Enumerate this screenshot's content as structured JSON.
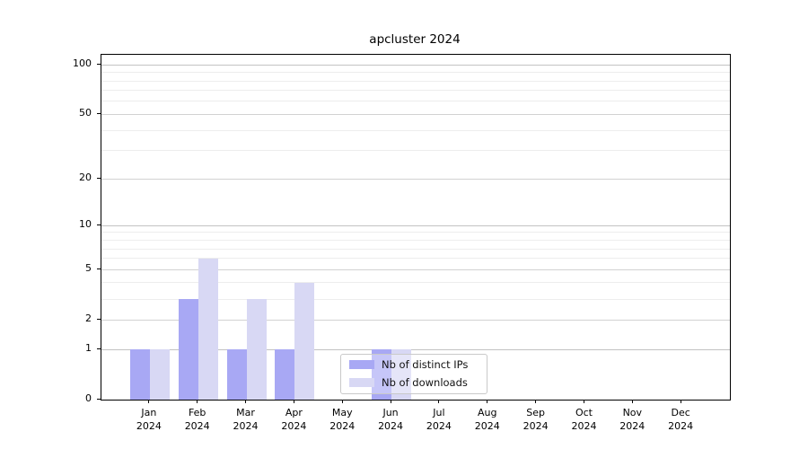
{
  "title": "apcluster 2024",
  "chart_data": {
    "type": "bar",
    "title": "apcluster 2024",
    "categories": [
      "Jan 2024",
      "Feb 2024",
      "Mar 2024",
      "Apr 2024",
      "May 2024",
      "Jun 2024",
      "Jul 2024",
      "Aug 2024",
      "Sep 2024",
      "Oct 2024",
      "Nov 2024",
      "Dec 2024"
    ],
    "series": [
      {
        "name": "Nb of distinct IPs",
        "color": "#a8a8f4",
        "values": [
          1,
          3,
          1,
          1,
          0,
          1,
          0,
          0,
          0,
          0,
          0,
          0
        ]
      },
      {
        "name": "Nb of downloads",
        "color": "#d8d8f4",
        "values": [
          1,
          6,
          3,
          4,
          0,
          1,
          0,
          0,
          0,
          0,
          0,
          0
        ]
      }
    ],
    "yscale": "log10(1+y)",
    "ylim": [
      0,
      115
    ],
    "yticks": [
      0,
      1,
      2,
      5,
      10,
      20,
      50,
      100
    ],
    "minor_yticks": [
      3,
      4,
      6,
      7,
      8,
      9,
      30,
      40,
      60,
      70,
      80,
      90
    ],
    "xlabel": "",
    "ylabel": "",
    "grid": true,
    "legend_position": "lower center inside plot"
  },
  "legend": {
    "items": [
      {
        "label": "Nb of distinct IPs",
        "color": "#a8a8f4"
      },
      {
        "label": "Nb of downloads",
        "color": "#d8d8f4"
      }
    ]
  },
  "colors": {
    "background": "#ffffff",
    "axis": "#000000",
    "grid_major": "#d2d2d2",
    "grid_minor": "#ededed",
    "bar_dark": "#a8a8f4",
    "bar_light": "#d8d8f4"
  }
}
